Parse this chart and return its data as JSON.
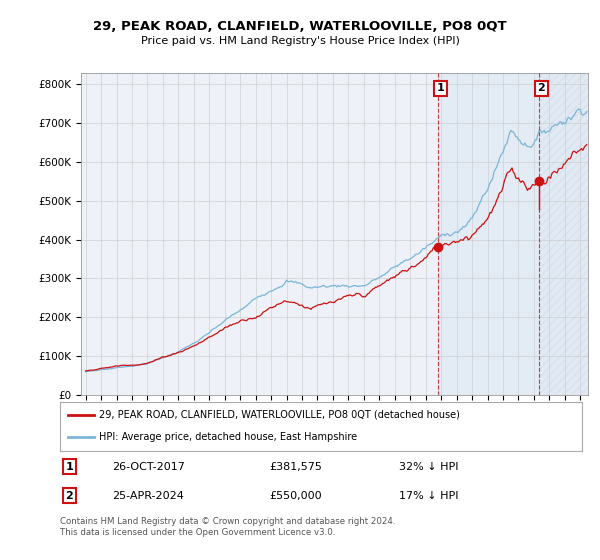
{
  "title": "29, PEAK ROAD, CLANFIELD, WATERLOOVILLE, PO8 0QT",
  "subtitle": "Price paid vs. HM Land Registry's House Price Index (HPI)",
  "ylabel_ticks": [
    "£0",
    "£100K",
    "£200K",
    "£300K",
    "£400K",
    "£500K",
    "£600K",
    "£700K",
    "£800K"
  ],
  "ylim": [
    0,
    830000
  ],
  "xlim_start": 1994.7,
  "xlim_end": 2027.5,
  "hpi_color": "#7ab5d8",
  "price_color": "#cc1111",
  "marker1_date": 2017.82,
  "marker1_price": 381575,
  "marker2_date": 2024.32,
  "marker2_price": 550000,
  "legend_line1": "29, PEAK ROAD, CLANFIELD, WATERLOOVILLE, PO8 0QT (detached house)",
  "legend_line2": "HPI: Average price, detached house, East Hampshire",
  "table_row1_num": "1",
  "table_row1_date": "26-OCT-2017",
  "table_row1_price": "£381,575",
  "table_row1_info": "32% ↓ HPI",
  "table_row2_num": "2",
  "table_row2_date": "25-APR-2024",
  "table_row2_price": "£550,000",
  "table_row2_info": "17% ↓ HPI",
  "footer": "Contains HM Land Registry data © Crown copyright and database right 2024.\nThis data is licensed under the Open Government Licence v3.0.",
  "grid_color": "#cccccc",
  "plot_bg": "#eef2f8",
  "shade_color": "#d0dff0"
}
